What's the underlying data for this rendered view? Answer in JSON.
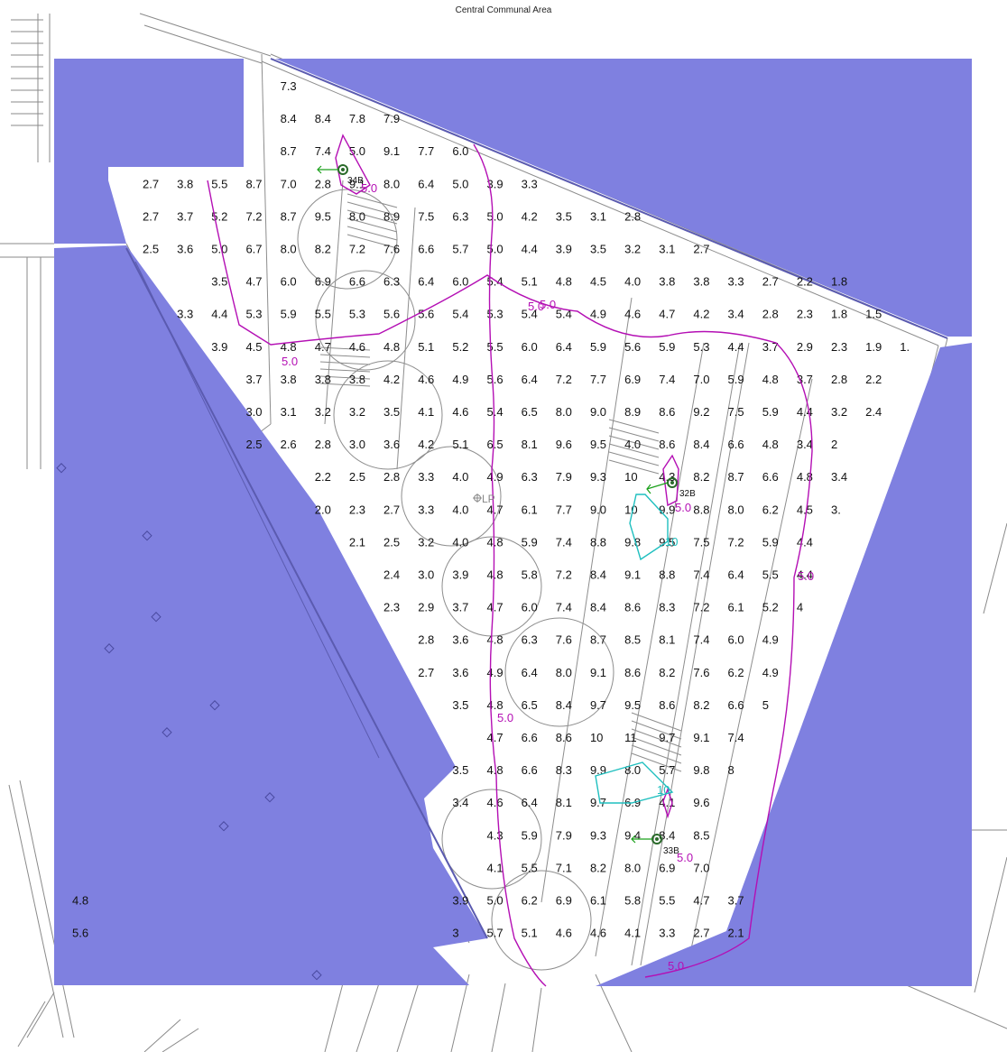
{
  "title": "Central Communal Area",
  "colors": {
    "mask": "#7f80e0",
    "contour": "#b40fb4",
    "contour_high": "#1fbfbf",
    "luminaire": "#1aa01a",
    "lines": "#777777",
    "text": "#111111"
  },
  "luminaires": [
    {
      "label": "34B",
      "icon": "luminaire-aim-icon"
    },
    {
      "label": "32B",
      "icon": "luminaire-aim-icon"
    },
    {
      "label": "33B",
      "icon": "luminaire-aim-icon"
    }
  ],
  "reference_point": {
    "label": "LP",
    "icon": "crosshair-icon"
  },
  "contours": [
    {
      "value": "5.0",
      "count": 9
    },
    {
      "value": "10",
      "count": 2
    }
  ],
  "rows": [
    [
      "7.3"
    ],
    [
      "8.4",
      "8.4",
      "7.8",
      "7.9"
    ],
    [
      "8.7",
      "7.4",
      "5.0",
      "9.1",
      "7.7",
      "6.0"
    ],
    [
      "2.7",
      "3.8",
      "5.5",
      "8.7",
      "7.0",
      "2.8",
      "9.1",
      "8.0",
      "6.4",
      "5.0",
      "3.9",
      "3.3"
    ],
    [
      "2.7",
      "3.7",
      "5.2",
      "7.2",
      "8.7",
      "9.5",
      "8.0",
      "8.9",
      "7.5",
      "6.3",
      "5.0",
      "4.2",
      "3.5",
      "3.1",
      "2.8"
    ],
    [
      "2.5",
      "3.6",
      "5.0",
      "6.7",
      "8.0",
      "8.2",
      "7.2",
      "7.6",
      "6.6",
      "5.7",
      "5.0",
      "4.4",
      "3.9",
      "3.5",
      "3.2",
      "3.1",
      "2.7"
    ],
    [
      "3.5",
      "4.7",
      "6.0",
      "6.9",
      "6.6",
      "6.3",
      "6.4",
      "6.0",
      "5.4",
      "5.1",
      "4.8",
      "4.5",
      "4.0",
      "3.8",
      "3.8",
      "3.3",
      "2.7",
      "2.2",
      "1.8"
    ],
    [
      "3.3",
      "4.4",
      "5.3",
      "5.9",
      "5.5",
      "5.3",
      "5.6",
      "5.6",
      "5.4",
      "5.3",
      "5.4",
      "5.4",
      "4.9",
      "4.6",
      "4.7",
      "4.2",
      "3.4",
      "2.8",
      "2.3",
      "1.8",
      "1.5"
    ],
    [
      "3.9",
      "4.5",
      "4.8",
      "4.7",
      "4.6",
      "4.8",
      "5.1",
      "5.2",
      "5.5",
      "6.0",
      "6.4",
      "5.9",
      "5.6",
      "5.9",
      "5.3",
      "4.4",
      "3.7",
      "2.9",
      "2.3",
      "1.9",
      "1."
    ],
    [
      "3.7",
      "3.8",
      "3.8",
      "3.8",
      "4.2",
      "4.6",
      "4.9",
      "5.6",
      "6.4",
      "7.2",
      "7.7",
      "6.9",
      "7.4",
      "7.0",
      "5.9",
      "4.8",
      "3.7",
      "2.8",
      "2.2"
    ],
    [
      "3.0",
      "3.1",
      "3.2",
      "3.2",
      "3.5",
      "4.1",
      "4.6",
      "5.4",
      "6.5",
      "8.0",
      "9.0",
      "8.9",
      "8.6",
      "9.2",
      "7.5",
      "5.9",
      "4.4",
      "3.2",
      "2.4"
    ],
    [
      "2.5",
      "2.6",
      "2.8",
      "3.0",
      "3.6",
      "4.2",
      "5.1",
      "6.5",
      "8.1",
      "9.6",
      "9.5",
      "4.0",
      "8.6",
      "8.4",
      "6.6",
      "4.8",
      "3.4",
      "2"
    ],
    [
      "2.2",
      "2.5",
      "2.8",
      "3.3",
      "4.0",
      "4.9",
      "6.3",
      "7.9",
      "9.3",
      "10",
      "4.3",
      "8.2",
      "8.7",
      "6.6",
      "4.8",
      "3.4"
    ],
    [
      "2.0",
      "2.3",
      "2.7",
      "3.3",
      "4.0",
      "4.7",
      "6.1",
      "7.7",
      "9.0",
      "10",
      "9.9",
      "8.8",
      "8.0",
      "6.2",
      "4.5",
      "3."
    ],
    [
      "2.1",
      "2.5",
      "3.2",
      "4.0",
      "4.8",
      "5.9",
      "7.4",
      "8.8",
      "9.8",
      "9.5",
      "7.5",
      "7.2",
      "5.9",
      "4.4"
    ],
    [
      "2.4",
      "3.0",
      "3.9",
      "4.8",
      "5.8",
      "7.2",
      "8.4",
      "9.1",
      "8.8",
      "7.4",
      "6.4",
      "5.5",
      "4.4"
    ],
    [
      "2.3",
      "2.9",
      "3.7",
      "4.7",
      "6.0",
      "7.4",
      "8.4",
      "8.6",
      "8.3",
      "7.2",
      "6.1",
      "5.2",
      "4"
    ],
    [
      "2.8",
      "3.6",
      "4.8",
      "6.3",
      "7.6",
      "8.7",
      "8.5",
      "8.1",
      "7.4",
      "6.0",
      "4.9"
    ],
    [
      "2.7",
      "3.6",
      "4.9",
      "6.4",
      "8.0",
      "9.1",
      "8.6",
      "8.2",
      "7.6",
      "6.2",
      "4.9"
    ],
    [
      "3.5",
      "4.8",
      "6.5",
      "8.4",
      "9.7",
      "9.5",
      "8.6",
      "8.2",
      "6.6",
      "5"
    ],
    [
      "4.7",
      "6.6",
      "8.6",
      "10",
      "11",
      "9.7",
      "9.1",
      "7.4"
    ],
    [
      "3.5",
      "4.8",
      "6.6",
      "8.3",
      "9.9",
      "8.0",
      "5.7",
      "9.8",
      "8"
    ],
    [
      "3.4",
      "4.6",
      "6.4",
      "8.1",
      "9.7",
      "6.9",
      "4.1",
      "9.6"
    ],
    [
      "4.3",
      "5.9",
      "7.9",
      "9.3",
      "9.4",
      "8.4",
      "8.5"
    ],
    [
      "4.1",
      "5.5",
      "7.1",
      "8.2",
      "8.0",
      "6.9",
      "7.0"
    ],
    [
      "4.8",
      "3.9",
      "5.0",
      "6.2",
      "6.9",
      "6.1",
      "5.8",
      "5.5",
      "4.7",
      "3.7"
    ],
    [
      "5.6",
      "3",
      "5.7",
      "5.1",
      "4.6",
      "4.6",
      "4.1",
      "3.3",
      "2.7",
      "2.1"
    ]
  ]
}
